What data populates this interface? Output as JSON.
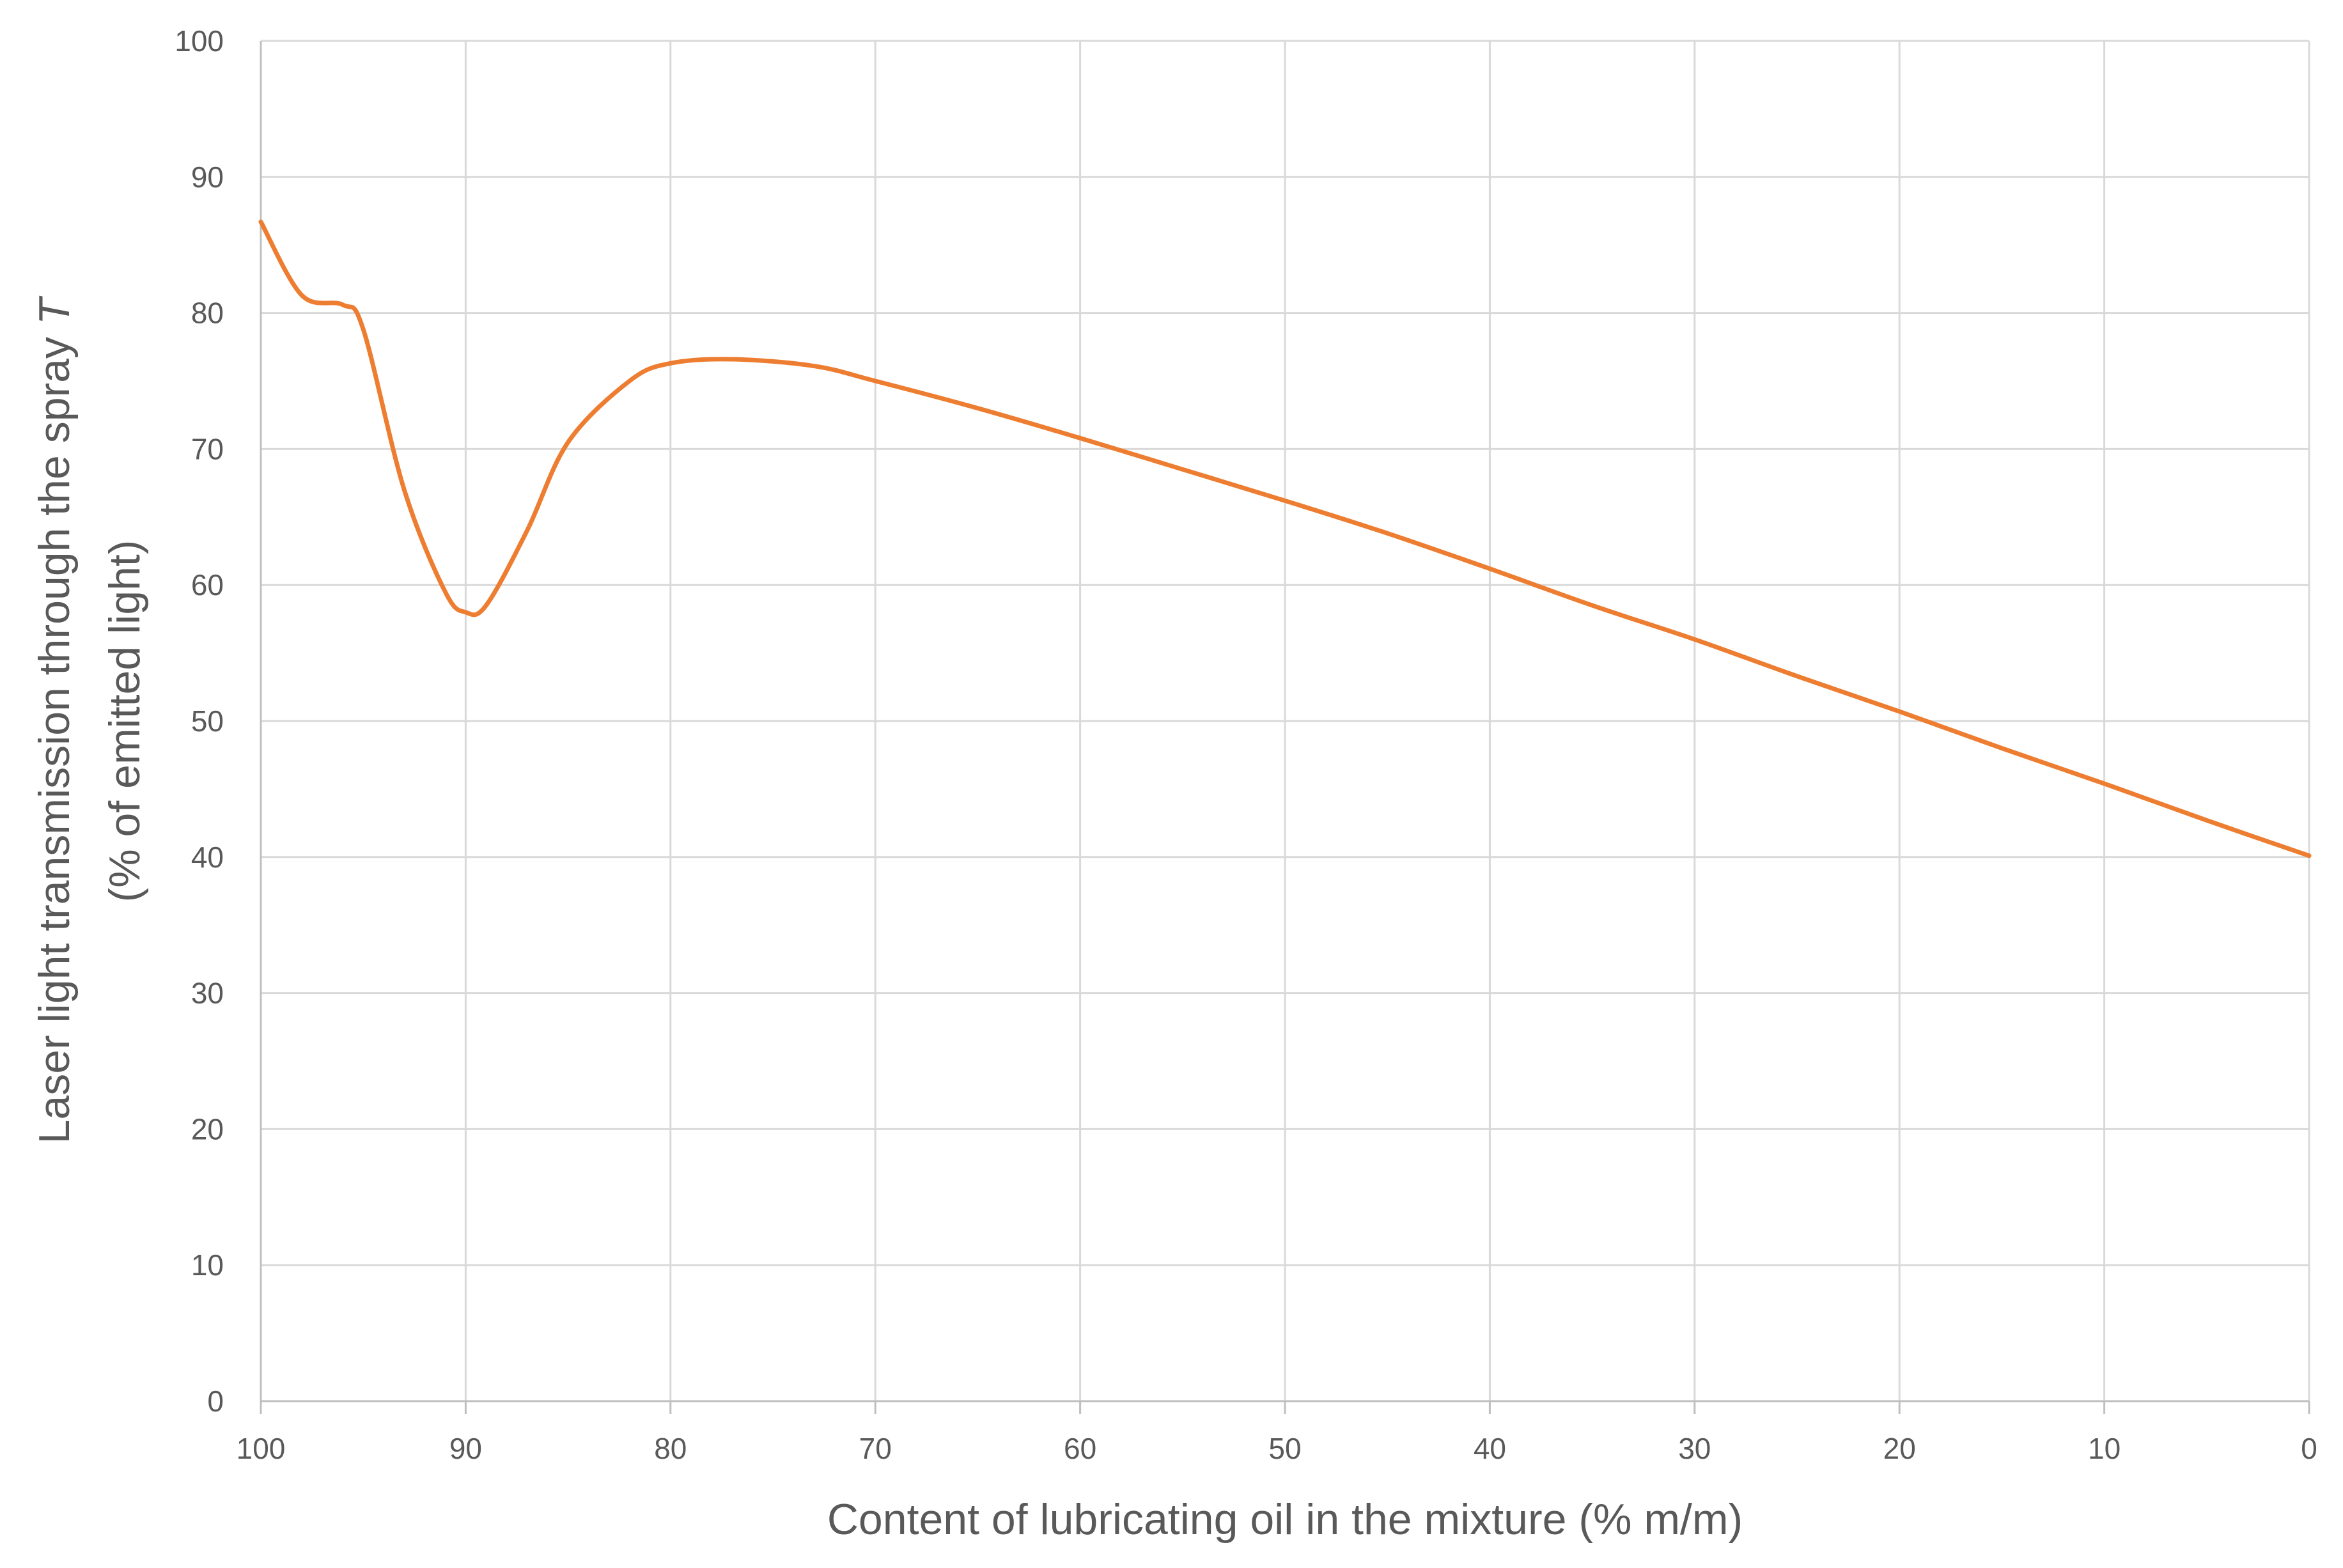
{
  "chart_data": {
    "type": "line",
    "title": "",
    "xlabel": "Content of lubricating oil in the mixture (% m/m)",
    "ylabel_line1": "Laser light transmission through the spray ",
    "ylabel_symbol": "T",
    "ylabel_line2": "(% of emitted light)",
    "xlim": [
      100,
      0
    ],
    "ylim": [
      0,
      100
    ],
    "x_reversed": true,
    "grid": true,
    "legend": "none",
    "x_ticks": [
      "100",
      "90",
      "80",
      "70",
      "60",
      "50",
      "40",
      "30",
      "20",
      "10",
      "0"
    ],
    "y_ticks": [
      "0",
      "10",
      "20",
      "30",
      "40",
      "50",
      "60",
      "70",
      "80",
      "90",
      "100"
    ],
    "series": [
      {
        "color": "#ed7d31",
        "x": [
          100,
          98,
          96,
          95,
          93,
          91,
          90,
          89,
          87,
          85,
          82,
          80,
          77,
          73,
          70,
          65,
          60,
          55,
          50,
          45,
          40,
          35,
          30,
          25,
          20,
          15,
          10,
          5,
          0
        ],
        "y": [
          86.7,
          81.3,
          80.6,
          78.8,
          67.0,
          59.5,
          58.0,
          58.5,
          64.0,
          70.5,
          75.0,
          76.3,
          76.6,
          76.1,
          75.0,
          73.0,
          70.8,
          68.5,
          66.2,
          63.8,
          61.2,
          58.5,
          56.0,
          53.3,
          50.7,
          48.0,
          45.4,
          42.7,
          40.1
        ]
      }
    ]
  }
}
